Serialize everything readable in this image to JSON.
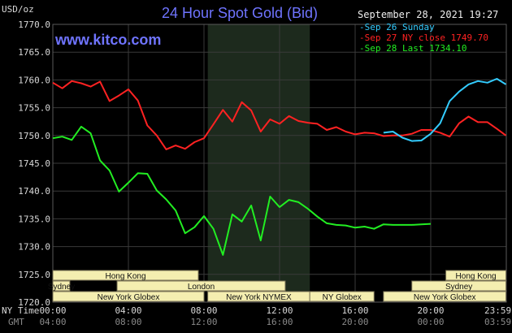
{
  "chart_data": {
    "type": "line",
    "title": "24 Hour Spot Gold (Bid)",
    "website": "www.kitco.com",
    "unit_label": "USD/oz",
    "timestamp": "September 28, 2021 19:27",
    "ylim": [
      1720,
      1770
    ],
    "yticks": [
      "1770.0",
      "1765.0",
      "1760.0",
      "1755.0",
      "1750.0",
      "1745.0",
      "1740.0",
      "1735.0",
      "1730.0",
      "1725.0",
      "1720.0"
    ],
    "ny_time_label": "NY Time",
    "gmt_label": "GMT",
    "xticks_ny": [
      "00:00",
      "04:00",
      "08:00",
      "12:00",
      "16:00",
      "20:00",
      "23:59"
    ],
    "xticks_gmt": [
      "04:00",
      "08:00",
      "12:00",
      "16:00",
      "20:00",
      "00:00",
      "03:59"
    ],
    "legend": [
      {
        "label": "Sep 26 Sunday",
        "color": "#33ccff"
      },
      {
        "label": "Sep 27 NY close 1749.70",
        "color": "#ff2222"
      },
      {
        "label": "Sep 28 Last 1734.10",
        "color": "#22ee22"
      }
    ],
    "series": [
      {
        "name": "Sep 27",
        "color": "#ff2222",
        "x": [
          0,
          0.5,
          1,
          1.5,
          2,
          2.5,
          3,
          3.5,
          4,
          4.5,
          5,
          5.5,
          6,
          6.5,
          7,
          7.5,
          8,
          8.5,
          9,
          9.5,
          10,
          10.5,
          11,
          11.5,
          12,
          12.5,
          13,
          13.5,
          14,
          14.5,
          15,
          15.5,
          16,
          16.5,
          17,
          17.5,
          18,
          18.5,
          19,
          19.5,
          20,
          20.5,
          21,
          21.5,
          22,
          22.5,
          23,
          23.5,
          23.98
        ],
        "y": [
          1759.5,
          1758.5,
          1759.8,
          1759.4,
          1758.8,
          1759.7,
          1756.2,
          1757.2,
          1758.3,
          1756.3,
          1751.8,
          1750.0,
          1747.5,
          1748.2,
          1747.6,
          1748.8,
          1749.5,
          1752.0,
          1754.6,
          1752.5,
          1756.0,
          1754.5,
          1750.7,
          1752.9,
          1752.1,
          1753.5,
          1752.6,
          1752.3,
          1752.1,
          1751.0,
          1751.5,
          1750.7,
          1750.2,
          1750.5,
          1750.4,
          1749.9,
          1750.0,
          1750.0,
          1750.3,
          1751.0,
          1751.0,
          1750.5,
          1749.8,
          1752.2,
          1753.4,
          1752.4,
          1752.4,
          1751.2,
          1750.0
        ]
      },
      {
        "name": "Sep 28",
        "color": "#22ee22",
        "x": [
          0,
          0.5,
          1,
          1.5,
          2,
          2.5,
          3,
          3.5,
          4,
          4.5,
          5,
          5.5,
          6,
          6.5,
          7,
          7.5,
          8,
          8.5,
          9,
          9.5,
          10,
          10.5,
          11,
          11.5,
          12,
          12.5,
          13,
          13.5,
          14,
          14.5,
          15,
          15.5,
          16,
          16.5,
          17,
          17.5,
          18,
          18.5,
          19,
          19.5,
          20
        ],
        "y": [
          1749.5,
          1749.8,
          1749.2,
          1751.6,
          1750.4,
          1745.5,
          1743.7,
          1739.9,
          1741.5,
          1743.2,
          1743.1,
          1740.1,
          1738.5,
          1736.5,
          1732.4,
          1733.5,
          1735.5,
          1733.2,
          1728.5,
          1735.8,
          1734.5,
          1737.4,
          1731.1,
          1739.0,
          1737.1,
          1738.4,
          1738.0,
          1736.8,
          1735.4,
          1734.2,
          1733.9,
          1733.8,
          1733.4,
          1733.6,
          1733.2,
          1734.0,
          1733.9,
          1733.9,
          1733.9,
          1734.0,
          1734.1
        ]
      },
      {
        "name": "Sep 26",
        "color": "#33ccff",
        "x": [
          17.5,
          18,
          18.5,
          19,
          19.5,
          20,
          20.5,
          21,
          21.5,
          22,
          22.5,
          23,
          23.5,
          23.98
        ],
        "y": [
          1750.5,
          1750.7,
          1749.6,
          1749.0,
          1749.1,
          1750.3,
          1752.2,
          1756.2,
          1757.9,
          1759.2,
          1759.8,
          1759.5,
          1760.2,
          1759.2
        ]
      }
    ],
    "sessions": [
      {
        "name": "Hong Kong",
        "rows": [
          {
            "row": 0,
            "start": 0,
            "end": 7.7
          },
          {
            "row": 0,
            "start": 20.8,
            "end": 23.98
          }
        ]
      },
      {
        "name": "London",
        "rows": [
          {
            "row": 1,
            "start": 3.4,
            "end": 12.3
          }
        ]
      },
      {
        "name": "Sydney",
        "rows": [
          {
            "row": 1,
            "start": 0,
            "end": 0.9
          },
          {
            "row": 1,
            "start": 19.0,
            "end": 23.98
          }
        ]
      },
      {
        "name": "New York Globex",
        "rows": [
          {
            "row": 2,
            "start": 0,
            "end": 8.0
          },
          {
            "row": 2,
            "start": 17.5,
            "end": 23.98
          }
        ]
      },
      {
        "name": "New York NYMEX",
        "rows": [
          {
            "row": 2,
            "start": 8.2,
            "end": 13.6
          }
        ]
      },
      {
        "name": "NY Globex",
        "rows": [
          {
            "row": 2,
            "start": 13.6,
            "end": 17.0
          }
        ]
      }
    ],
    "nymex_highlight": [
      8.2,
      13.6
    ]
  }
}
